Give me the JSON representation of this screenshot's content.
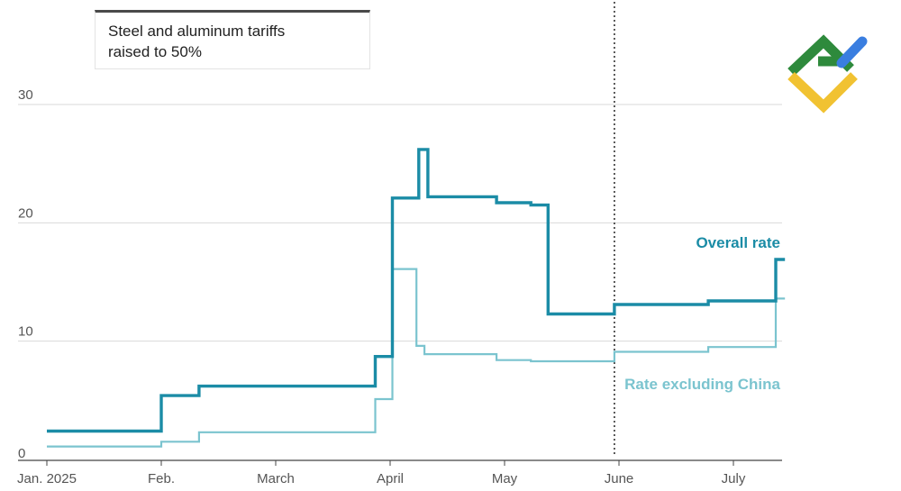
{
  "annotation": {
    "line1": "Steel and aluminum tariffs",
    "line2": "raised to 50%"
  },
  "logo": {
    "name": "brand-logo"
  },
  "chart_data": {
    "type": "line",
    "title": "",
    "xlabel": "",
    "ylabel": "",
    "ylim": [
      0,
      30
    ],
    "xlim": [
      0,
      6.45
    ],
    "y_ticks": [
      {
        "value": 30,
        "label": "30"
      },
      {
        "value": 20,
        "label": "20"
      },
      {
        "value": 10,
        "label": "10"
      },
      {
        "value": 0,
        "label": "0"
      }
    ],
    "x_ticks": [
      {
        "value": 0,
        "label": "Jan. 2025"
      },
      {
        "value": 1,
        "label": "Feb."
      },
      {
        "value": 2,
        "label": "March"
      },
      {
        "value": 3,
        "label": "April"
      },
      {
        "value": 4,
        "label": "May"
      },
      {
        "value": 5,
        "label": "June"
      },
      {
        "value": 6,
        "label": "July"
      }
    ],
    "reference_line": {
      "x": 4.96,
      "style": "dotted"
    },
    "grid": true,
    "series": [
      {
        "name": "Overall rate",
        "color": "#1b8ca6",
        "x": [
          0,
          1,
          1,
          1.33,
          1.33,
          2.87,
          2.87,
          3.02,
          3.02,
          3.25,
          3.25,
          3.33,
          3.33,
          3.93,
          3.93,
          4.23,
          4.23,
          4.38,
          4.38,
          4.96,
          4.96,
          5.78,
          5.78,
          6.37,
          6.37,
          6.45
        ],
        "y": [
          2.4,
          2.4,
          5.4,
          5.4,
          6.2,
          6.2,
          8.7,
          8.7,
          22.1,
          22.1,
          26.2,
          26.2,
          22.2,
          22.2,
          21.7,
          21.7,
          21.5,
          21.5,
          12.3,
          12.3,
          13.1,
          13.1,
          13.4,
          13.4,
          16.9,
          16.9
        ]
      },
      {
        "name": "Rate excluding China",
        "color": "#7bc4cf",
        "x": [
          0,
          1,
          1,
          1.33,
          1.33,
          2.87,
          2.87,
          3.02,
          3.02,
          3.23,
          3.23,
          3.3,
          3.3,
          3.93,
          3.93,
          4.23,
          4.23,
          4.96,
          4.96,
          5.78,
          5.78,
          6.37,
          6.37,
          6.45
        ],
        "y": [
          1.1,
          1.1,
          1.5,
          1.5,
          2.3,
          2.3,
          5.1,
          5.1,
          16.1,
          16.1,
          9.6,
          9.6,
          8.9,
          8.9,
          8.4,
          8.4,
          8.3,
          8.3,
          9.1,
          9.1,
          9.5,
          9.5,
          13.6,
          13.6
        ]
      }
    ],
    "series_labels": [
      {
        "text": "Overall rate",
        "series": 0
      },
      {
        "text": "Rate excluding China",
        "series": 1
      }
    ]
  }
}
